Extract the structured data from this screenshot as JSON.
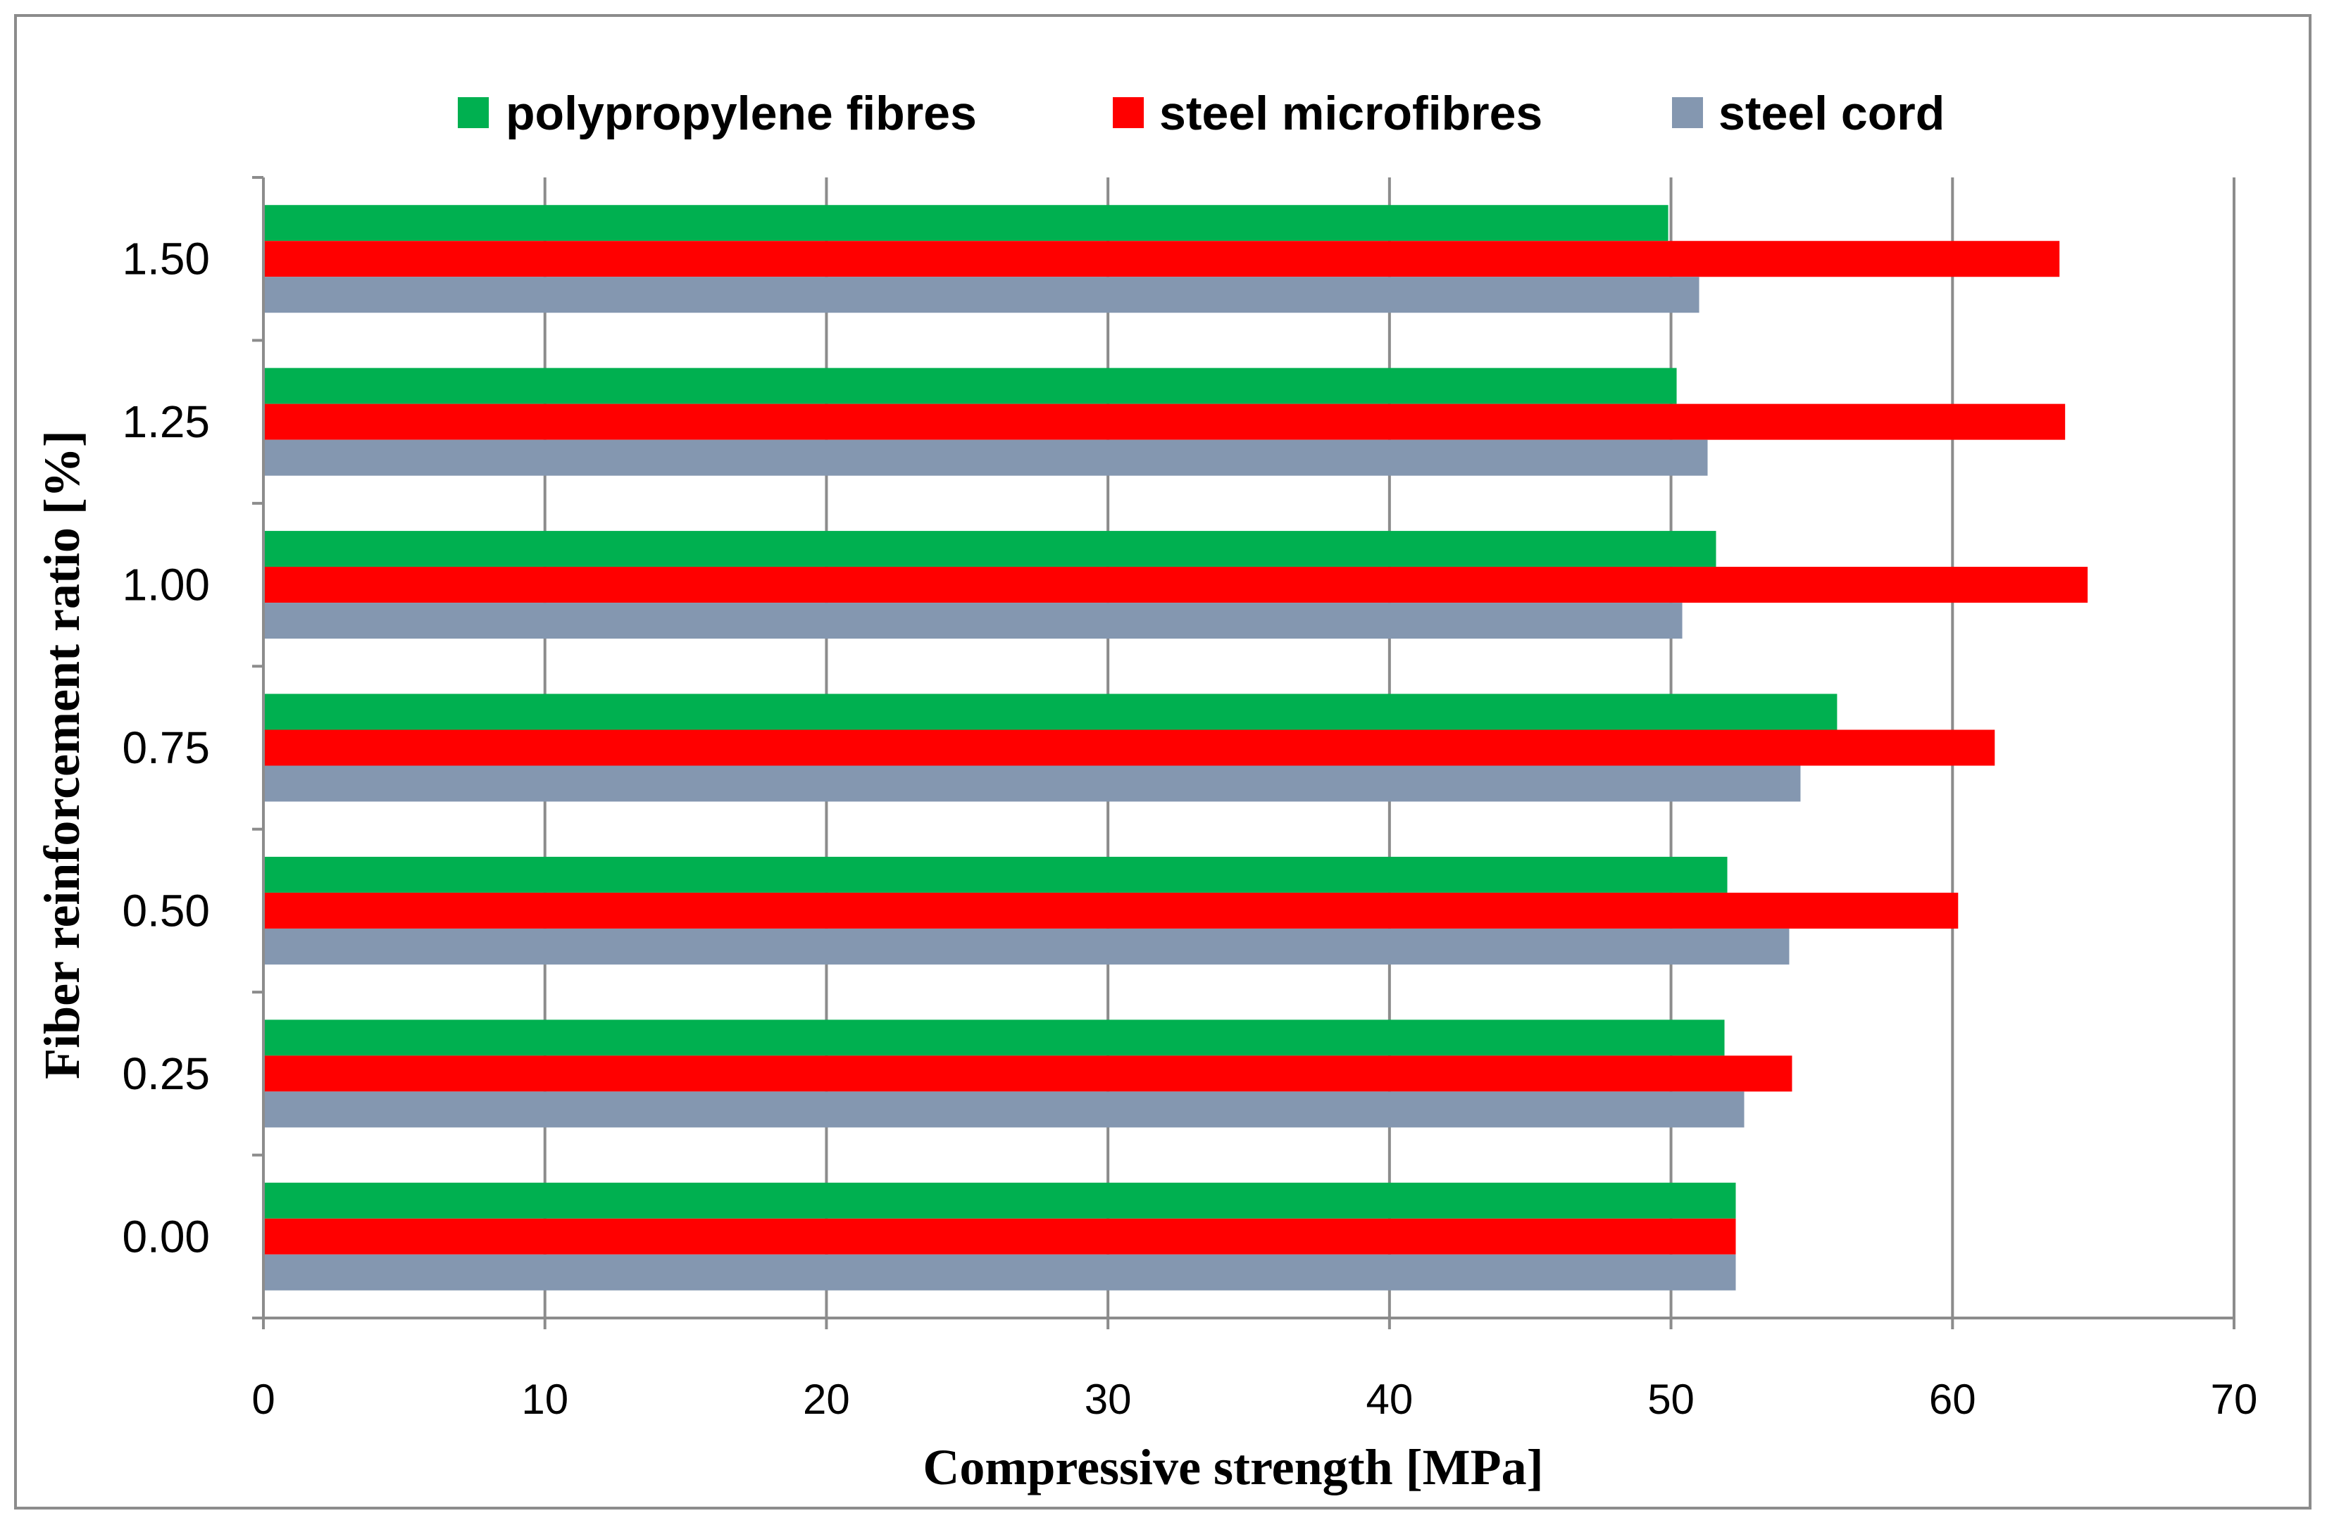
{
  "chart_data": {
    "type": "bar",
    "orientation": "horizontal",
    "title": "",
    "xlabel": "Compressive strength [MPa]",
    "ylabel": "Fiber reinforcement ratio [%]",
    "xlim": [
      0,
      70
    ],
    "xticks": [
      "0",
      "10",
      "20",
      "30",
      "40",
      "50",
      "60",
      "70"
    ],
    "categories": [
      "0.00",
      "0.25",
      "0.50",
      "0.75",
      "1.00",
      "1.25",
      "1.50"
    ],
    "series": [
      {
        "name": "polypropylene fibres",
        "color": "#00b050",
        "values": [
          52.3,
          51.9,
          52.0,
          55.9,
          51.6,
          50.2,
          49.9
        ]
      },
      {
        "name": "steel microfibres",
        "color": "#ff0000",
        "values": [
          52.3,
          54.3,
          60.2,
          61.5,
          64.8,
          64.0,
          63.8
        ]
      },
      {
        "name": "steel cord",
        "color": "#8497b0",
        "values": [
          52.3,
          52.6,
          54.2,
          54.6,
          50.4,
          51.3,
          51.0
        ]
      }
    ],
    "grid": true,
    "legend": "top"
  }
}
